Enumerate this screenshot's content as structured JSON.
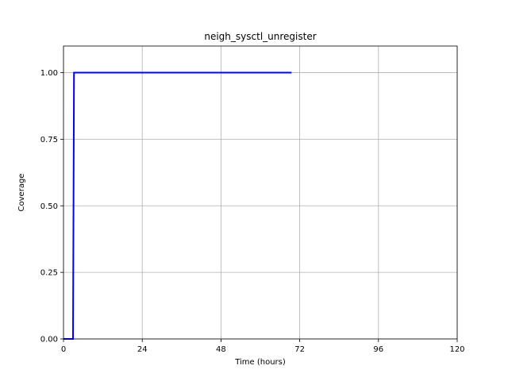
{
  "chart_data": {
    "type": "line",
    "title": "neigh_sysctl_unregister",
    "xlabel": "Time (hours)",
    "ylabel": "Coverage",
    "xlim": [
      0,
      120
    ],
    "ylim": [
      0,
      1.1
    ],
    "xticks": [
      0,
      24,
      48,
      72,
      96,
      120
    ],
    "xtick_labels": [
      "0",
      "24",
      "48",
      "72",
      "96",
      "120"
    ],
    "yticks": [
      0,
      0.25,
      0.5,
      0.75,
      1.0
    ],
    "ytick_labels": [
      "0.00",
      "0.25",
      "0.50",
      "0.75",
      "1.00"
    ],
    "grid": true,
    "series": [
      {
        "color": "#0000ff",
        "x": [
          0,
          2.9,
          3.2,
          69.5
        ],
        "y": [
          0,
          0,
          1.0,
          1.0
        ]
      }
    ]
  }
}
